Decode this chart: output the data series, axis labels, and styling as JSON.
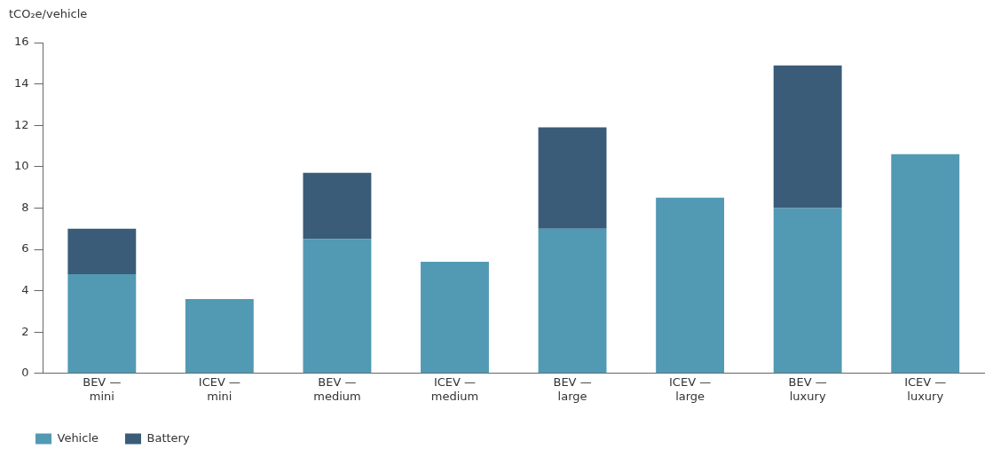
{
  "chart_data": {
    "type": "bar",
    "ylabel": "tCO₂e/vehicle",
    "stacked": true,
    "categories": [
      "BEV —\nmini",
      "ICEV —\nmini",
      "BEV —\nmedium",
      "ICEV —\nmedium",
      "BEV —\nlarge",
      "ICEV —\nlarge",
      "BEV —\nluxury",
      "ICEV —\nluxury"
    ],
    "series": [
      {
        "name": "Vehicle",
        "color": "#5299b3",
        "values": [
          4.8,
          3.6,
          6.5,
          5.4,
          7.0,
          8.5,
          8.0,
          10.6
        ]
      },
      {
        "name": "Battery",
        "color": "#3a5c78",
        "values": [
          2.2,
          null,
          3.2,
          null,
          4.9,
          null,
          6.9,
          null
        ]
      }
    ],
    "ylim": [
      0,
      16
    ],
    "yticks": [
      0,
      2,
      4,
      6,
      8,
      10,
      12,
      14,
      16
    ],
    "grid": false,
    "legend": "bottom left"
  }
}
